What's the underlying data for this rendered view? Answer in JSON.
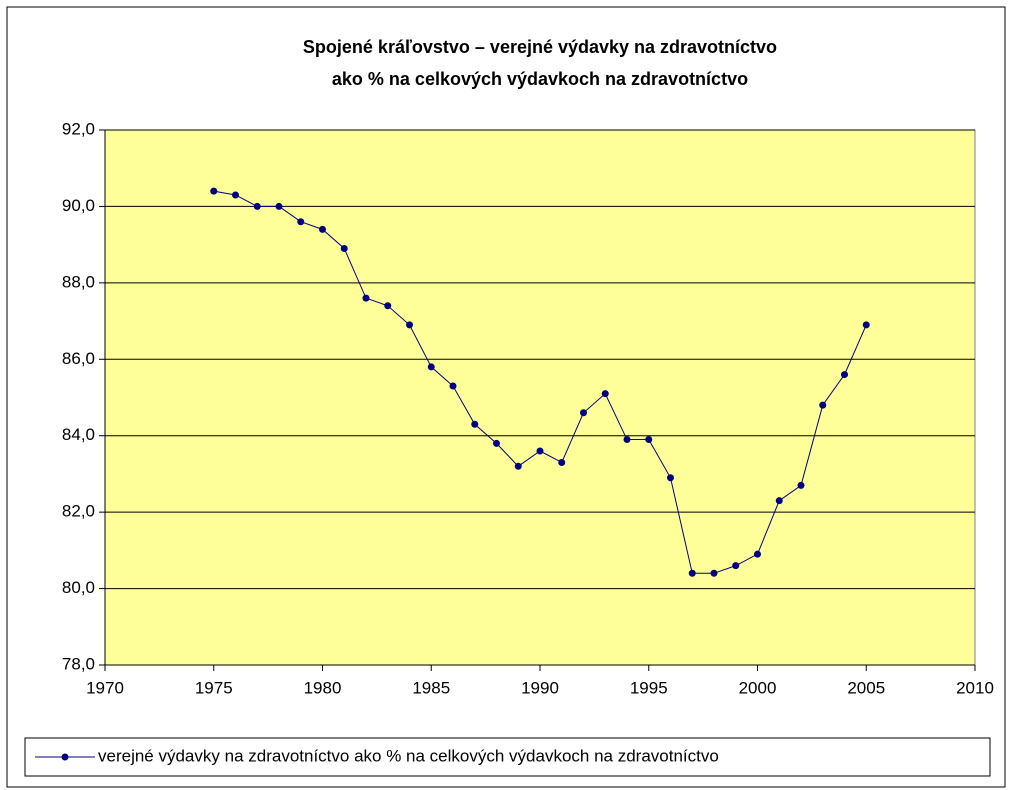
{
  "chart_data": {
    "type": "line",
    "title": [
      "Spojené kráľovstvo – verejné výdavky na zdravotníctvo",
      "ako % na celkových výdavkoch na zdravotníctvo"
    ],
    "x": [
      1975,
      1976,
      1977,
      1978,
      1979,
      1980,
      1981,
      1982,
      1983,
      1984,
      1985,
      1986,
      1987,
      1988,
      1989,
      1990,
      1991,
      1992,
      1993,
      1994,
      1995,
      1996,
      1997,
      1998,
      1999,
      2000,
      2001,
      2002,
      2003,
      2004,
      2005
    ],
    "series": [
      {
        "name": "verejné výdavky na zdravotníctvo ako % na celkových výdavkoch na zdravotníctvo",
        "color": "#000080",
        "values": [
          90.4,
          90.3,
          90.0,
          90.0,
          89.6,
          89.4,
          88.9,
          87.6,
          87.4,
          86.9,
          85.8,
          85.3,
          84.3,
          83.8,
          83.2,
          83.6,
          83.3,
          84.6,
          85.1,
          83.9,
          83.9,
          82.9,
          80.4,
          80.4,
          80.6,
          80.9,
          82.3,
          82.7,
          84.8,
          85.6,
          86.9
        ]
      }
    ],
    "xlim": [
      1970,
      2010
    ],
    "xticks": [
      1970,
      1975,
      1980,
      1985,
      1990,
      1995,
      2000,
      2005,
      2010
    ],
    "ylim": [
      78,
      92
    ],
    "yticks": [
      {
        "value": 78,
        "label": "78,0"
      },
      {
        "value": 80,
        "label": "80,0"
      },
      {
        "value": 82,
        "label": "82,0"
      },
      {
        "value": 84,
        "label": "84,0"
      },
      {
        "value": 86,
        "label": "86,0"
      },
      {
        "value": 88,
        "label": "88,0"
      },
      {
        "value": 90,
        "label": "90,0"
      },
      {
        "value": 92,
        "label": "92,0"
      }
    ],
    "grid": true,
    "legend": "bottom",
    "plot_background": "#ffff99"
  }
}
